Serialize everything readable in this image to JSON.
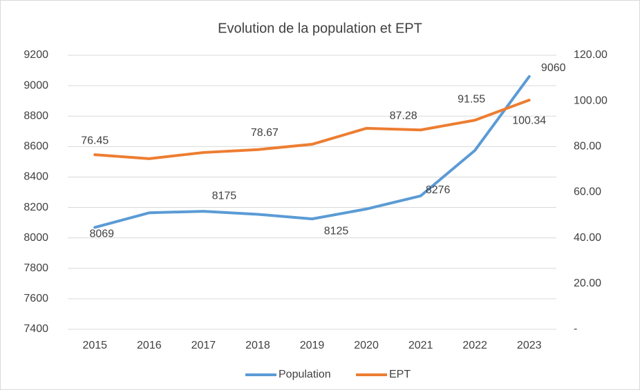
{
  "chart_data": {
    "type": "line",
    "title": "Evolution de la population et EPT",
    "categories": [
      "2015",
      "2016",
      "2017",
      "2018",
      "2019",
      "2020",
      "2021",
      "2022",
      "2023"
    ],
    "series": [
      {
        "name": "Population",
        "color": "#5b9bd5",
        "axis": "y",
        "values": [
          8069,
          8165,
          8175,
          8155,
          8125,
          8190,
          8276,
          8575,
          9060
        ],
        "value_labels": [
          "8069",
          null,
          "8175",
          null,
          "8125",
          null,
          "8276",
          null,
          "9060"
        ]
      },
      {
        "name": "EPT",
        "color": "#ed7d31",
        "axis": "y2",
        "values": [
          76.45,
          74.7,
          77.4,
          78.67,
          81.0,
          88.0,
          87.28,
          91.55,
          100.34
        ],
        "value_labels": [
          "76.45",
          null,
          null,
          "78.67",
          null,
          null,
          "87.28",
          "91.55",
          "100.34"
        ]
      }
    ],
    "ylim": [
      7400,
      9200
    ],
    "yticks": [
      7400,
      7600,
      7800,
      8000,
      8200,
      8400,
      8600,
      8800,
      9000,
      9200
    ],
    "y2lim": [
      0,
      120
    ],
    "y2ticks": [
      {
        "value": 0,
        "label": "-"
      },
      {
        "value": 20,
        "label": "20.00"
      },
      {
        "value": 40,
        "label": "40.00"
      },
      {
        "value": 60,
        "label": "60.00"
      },
      {
        "value": 80,
        "label": "80.00"
      },
      {
        "value": 100,
        "label": "100.00"
      },
      {
        "value": 120,
        "label": "120.00"
      }
    ],
    "grid": true,
    "legend": "bottom"
  }
}
